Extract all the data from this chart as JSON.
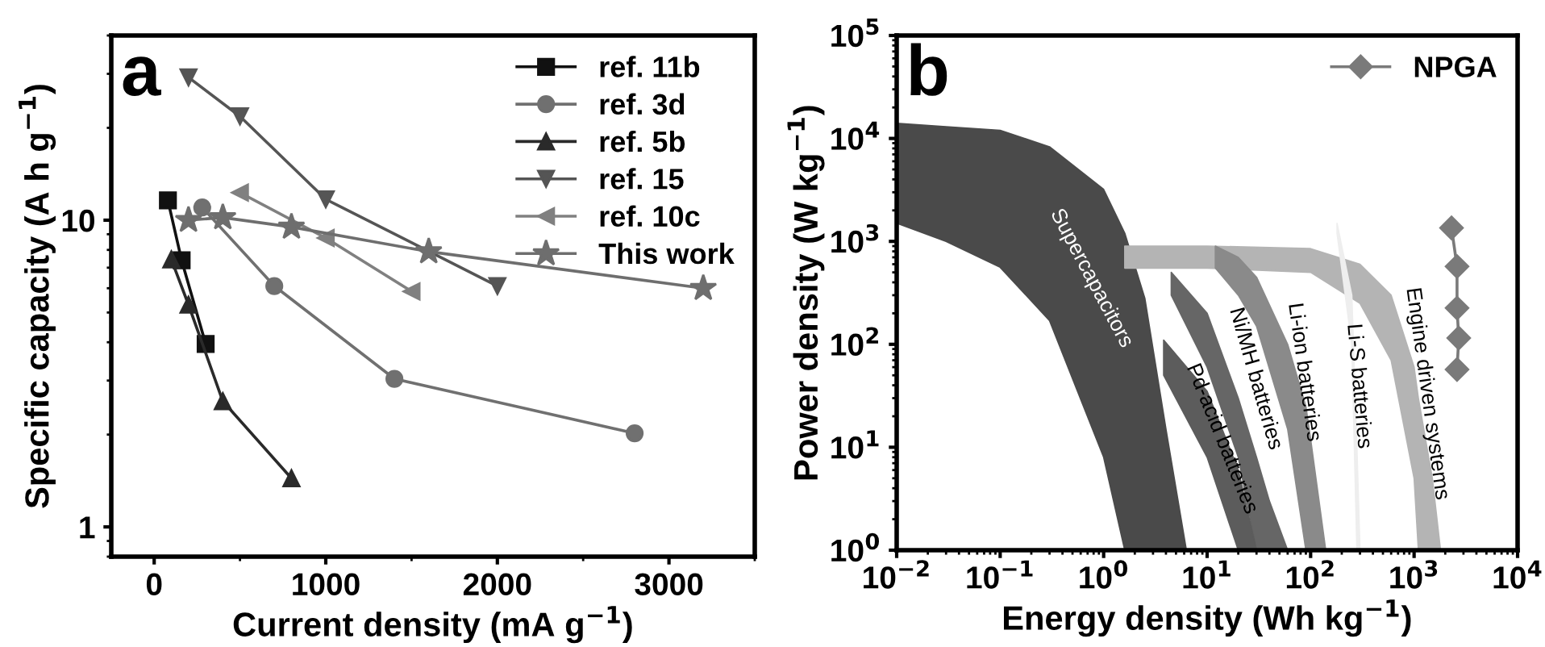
{
  "chart_data": [
    {
      "type": "line",
      "xlabel": "Current density (mA g$^{−1}$)",
      "ylabel": "Specific capacity (A h g$^{−1}$)",
      "log": "y",
      "xlim": [
        -250,
        3500
      ],
      "xticks": [
        0,
        1000,
        2000,
        3000
      ],
      "ylim": [
        0.8,
        40
      ],
      "yticks": [
        1,
        10
      ],
      "grid": false,
      "legend": "top right",
      "line_style": "solid",
      "annotations": [
        "a"
      ],
      "series": [
        {
          "name": "ref. 11b",
          "color": "#111111",
          "marker": "square",
          "x": [
            80,
            160,
            300
          ],
          "values": [
            11.6,
            7.4,
            3.95
          ]
        },
        {
          "name": "ref. 3d",
          "color": "#707070",
          "marker": "circle",
          "x": [
            280,
            700,
            1400,
            2800
          ],
          "values": [
            11.0,
            6.1,
            3.04,
            2.02
          ]
        },
        {
          "name": "ref. 5b",
          "color": "#2a2a2a",
          "marker": "triangle",
          "x": [
            100,
            200,
            400,
            800
          ],
          "values": [
            7.45,
            5.3,
            2.57,
            1.44
          ]
        },
        {
          "name": "ref. 15",
          "color": "#555555",
          "marker": "triangle-down",
          "x": [
            200,
            500,
            1000,
            2000
          ],
          "values": [
            29.2,
            21.8,
            11.7,
            6.1
          ]
        },
        {
          "name": "ref. 10c",
          "color": "#808080",
          "marker": "triangle-left",
          "x": [
            500,
            1000,
            1500
          ],
          "values": [
            12.3,
            8.75,
            5.86
          ]
        },
        {
          "name": "This work",
          "color": "#6e6e6e",
          "marker": "star",
          "x": [
            200,
            400,
            800,
            1600,
            3200
          ],
          "values": [
            10,
            10.2,
            9.5,
            7.9,
            6.0
          ]
        }
      ]
    },
    {
      "type": "area",
      "xlabel": "Energy density (Wh kg$^{−1}$)",
      "ylabel": "Power density (W kg$^{−1}$)",
      "log": "xy",
      "xlim": [
        0.01,
        10000
      ],
      "ylim": [
        1,
        100000
      ],
      "grid": false,
      "legend": "top right",
      "xticks": [
        {
          "value": 0.01,
          "label": "10$^{−2}$"
        },
        {
          "value": 0.1,
          "label": "10$^{−1}$"
        },
        {
          "value": 1,
          "label": "10$^{0}$"
        },
        {
          "value": 10,
          "label": "10$^{1}$"
        },
        {
          "value": 100,
          "label": "10$^{2}$"
        },
        {
          "value": 1000,
          "label": "10$^{3}$"
        },
        {
          "value": 10000,
          "label": "10$^{4}$"
        }
      ],
      "yticks": [
        {
          "value": 1,
          "label": "10$^{0}$"
        },
        {
          "value": 10,
          "label": "10$^{1}$"
        },
        {
          "value": 100,
          "label": "10$^{2}$"
        },
        {
          "value": 1000,
          "label": "10$^{3}$"
        },
        {
          "value": 10000,
          "label": "10$^{4}$"
        },
        {
          "value": 100000,
          "label": "10$^{5}$"
        }
      ],
      "annotations": [
        "b",
        "Supercapacitors",
        "Pd-acid batteries",
        "Ni/MH batteries",
        "Li-ion batteries",
        "Li-S batteries",
        "Engine driven systems"
      ],
      "series": [
        {
          "color": "#4a4a4a",
          "x": [
            0.01,
            0.03,
            0.1,
            0.3,
            1,
            1.6,
            2.5,
            4,
            6.3
          ],
          "values": [
            null,
            null,
            null,
            null,
            null,
            null,
            null,
            null,
            null
          ],
          "upper": [
            14000,
            13000,
            12000,
            8300,
            3200,
            1200,
            280,
            15,
            1
          ],
          "lower": [
            1500,
            1000,
            560,
            170,
            8,
            1,
            1,
            1,
            1
          ]
        },
        {
          "color": "#b4b4b4",
          "x": [
            1.6,
            10,
            100,
            300,
            600,
            1000,
            1100,
            1500,
            1800
          ],
          "values": [
            null,
            null,
            null,
            null,
            null,
            null,
            null,
            null,
            null
          ],
          "upper": [
            900,
            900,
            850,
            600,
            300,
            60,
            30,
            5,
            1
          ],
          "lower": [
            550,
            550,
            500,
            250,
            70,
            5,
            1,
            1,
            1
          ]
        },
        {
          "color": "#8a8a8a",
          "x": [
            12,
            20,
            30,
            60,
            90,
            100,
            140
          ],
          "values": [
            null,
            null,
            null,
            null,
            null,
            null,
            null
          ],
          "upper": [
            900,
            700,
            450,
            100,
            25,
            12,
            1
          ],
          "lower": [
            550,
            300,
            150,
            15,
            1,
            1,
            1
          ]
        },
        {
          "color": "#666666",
          "x": [
            4.5,
            10,
            20,
            30,
            40,
            60
          ],
          "values": [
            null,
            null,
            null,
            null,
            null,
            null
          ],
          "upper": [
            500,
            200,
            30,
            8,
            3,
            1
          ],
          "lower": [
            300,
            60,
            8,
            1,
            1,
            1
          ]
        },
        {
          "color": "#5c5c5c",
          "x": [
            3.8,
            10,
            20,
            30
          ],
          "values": [
            null,
            null,
            null,
            null
          ],
          "upper": [
            110,
            35,
            6,
            1
          ],
          "lower": [
            50,
            8,
            1,
            1
          ]
        },
        {
          "color": "#eeeeee",
          "x": [
            180,
            250,
            280,
            300
          ],
          "values": [
            null,
            null,
            null,
            null
          ],
          "upper": [
            1500,
            300,
            10,
            1
          ],
          "lower": [
            1200,
            100,
            1,
            1
          ]
        },
        {
          "name": "NPGA",
          "type": "line",
          "color": "#7a7a7a",
          "marker": "diamond",
          "x": [
            2300,
            2600,
            2600,
            2700,
            2600
          ],
          "values": [
            1350,
            570,
            225,
            115,
            57
          ]
        }
      ]
    }
  ]
}
